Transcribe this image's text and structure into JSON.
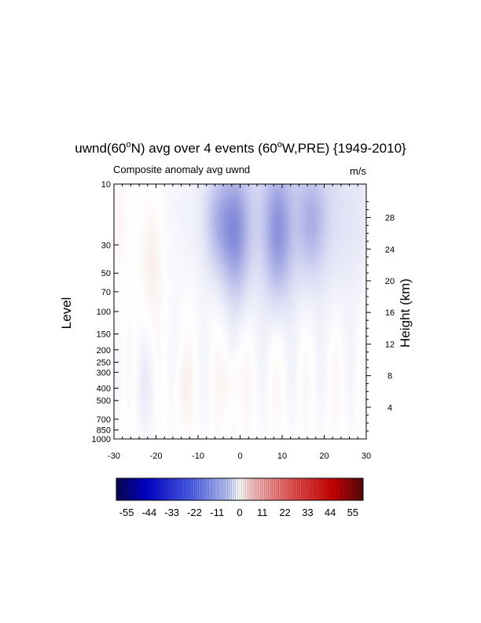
{
  "chart_data": {
    "type": "heatmap",
    "title": {
      "pre": "uwnd(60",
      "sup1": "o",
      "mid": "N) avg over 4 events (60",
      "sup2": "o",
      "post": "W,PRE) {1949-2010}"
    },
    "subtitle_left": "Composite anomaly avg uwnd",
    "subtitle_right": "m/s",
    "xlabel": "",
    "ylabel": "Level",
    "ylabel_right": "Height (km)",
    "xlim": [
      -30,
      30
    ],
    "x_ticks": [
      -30,
      -20,
      -10,
      0,
      10,
      20,
      30
    ],
    "y_scale": "log",
    "ylim": [
      1000,
      10
    ],
    "y_ticks": [
      10,
      30,
      50,
      70,
      100,
      150,
      200,
      250,
      300,
      400,
      500,
      700,
      850,
      1000
    ],
    "height_ticks_km": [
      4,
      8,
      12,
      16,
      20,
      24,
      28
    ],
    "colorbar": {
      "colormap": "blue-white-red",
      "range": [
        -60,
        60
      ],
      "labels": [
        -55,
        -44,
        -33,
        -22,
        -11,
        0,
        11,
        22,
        33,
        44,
        55
      ]
    },
    "features": [
      {
        "sign": "negative",
        "x_center": -1,
        "p_top": 10,
        "p_bottom": 60,
        "peak": -22
      },
      {
        "sign": "negative",
        "x_center": 9,
        "p_top": 10,
        "p_bottom": 60,
        "peak": -20
      },
      {
        "sign": "negative",
        "x_center": 17,
        "p_top": 10,
        "p_bottom": 40,
        "peak": -12
      },
      {
        "sign": "negative",
        "x_center": -5,
        "p_top": 10,
        "p_bottom": 40,
        "peak": -14
      },
      {
        "sign": "positive",
        "x_center": -2,
        "p_top": 250,
        "p_bottom": 500,
        "peak": 4
      },
      {
        "sign": "positive",
        "x_center": -14,
        "p_top": 250,
        "p_bottom": 600,
        "peak": 3
      },
      {
        "sign": "positive",
        "x_center": -29,
        "p_top": 10,
        "p_bottom": 40,
        "peak": 3
      }
    ]
  }
}
